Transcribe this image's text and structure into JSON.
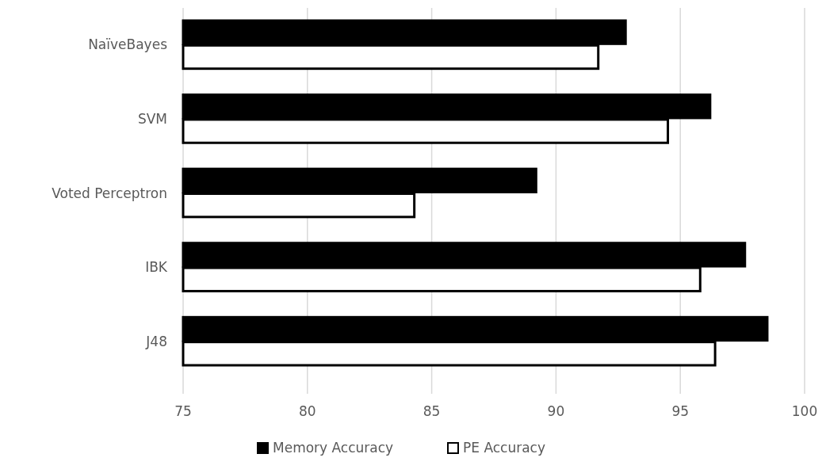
{
  "chart_data": {
    "type": "bar",
    "orientation": "horizontal",
    "categories": [
      "NaïveBayes",
      "SVM",
      "Voted Perceptron",
      "IBK",
      "J48"
    ],
    "series": [
      {
        "name": "Memory Accuracy",
        "color": "#000000",
        "values": [
          92.8,
          96.2,
          89.2,
          97.6,
          98.5
        ]
      },
      {
        "name": "PE Accuracy",
        "color": "#ffffff",
        "values": [
          91.7,
          94.5,
          84.3,
          95.8,
          96.4
        ]
      }
    ],
    "xlim": [
      75,
      100
    ],
    "xticks": [
      75,
      80,
      85,
      90,
      95,
      100
    ],
    "grid": "x",
    "legend": "bottom"
  }
}
